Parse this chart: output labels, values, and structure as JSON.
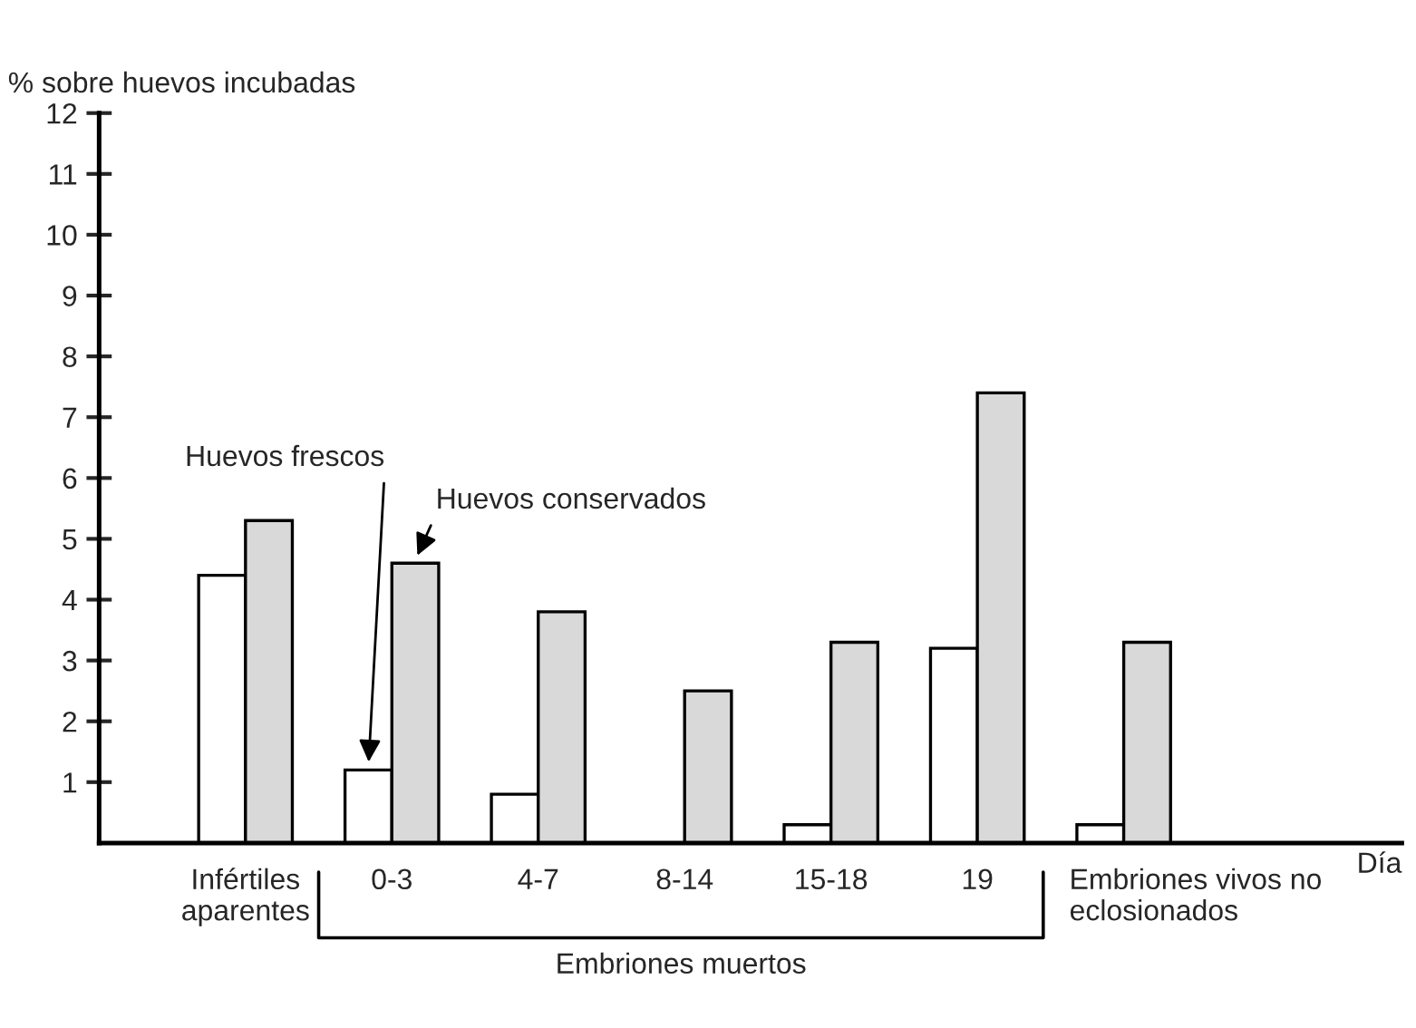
{
  "chart_data": {
    "type": "bar",
    "ylabel": "% sobre huevos incubadas",
    "xlabel": "Día",
    "categories": [
      "Infértiles\naparentes",
      "0-3",
      "4-7",
      "8-14",
      "15-18",
      "19",
      "Embriones vivos no\neclosionados"
    ],
    "series": [
      {
        "name": "Huevos frescos",
        "color": "#ffffff",
        "values": [
          4.4,
          1.2,
          0.8,
          null,
          0.3,
          3.2,
          0.3
        ]
      },
      {
        "name": "Huevos conservados",
        "color": "#d9d9d9",
        "values": [
          5.3,
          4.6,
          3.8,
          2.5,
          3.3,
          7.4,
          3.3
        ]
      }
    ],
    "ylim": [
      0,
      12
    ],
    "yticks": [
      1,
      2,
      3,
      4,
      5,
      6,
      7,
      8,
      9,
      10,
      11,
      12
    ],
    "annotations": [
      "Embriones muertos"
    ],
    "grid": false,
    "legend": false
  }
}
